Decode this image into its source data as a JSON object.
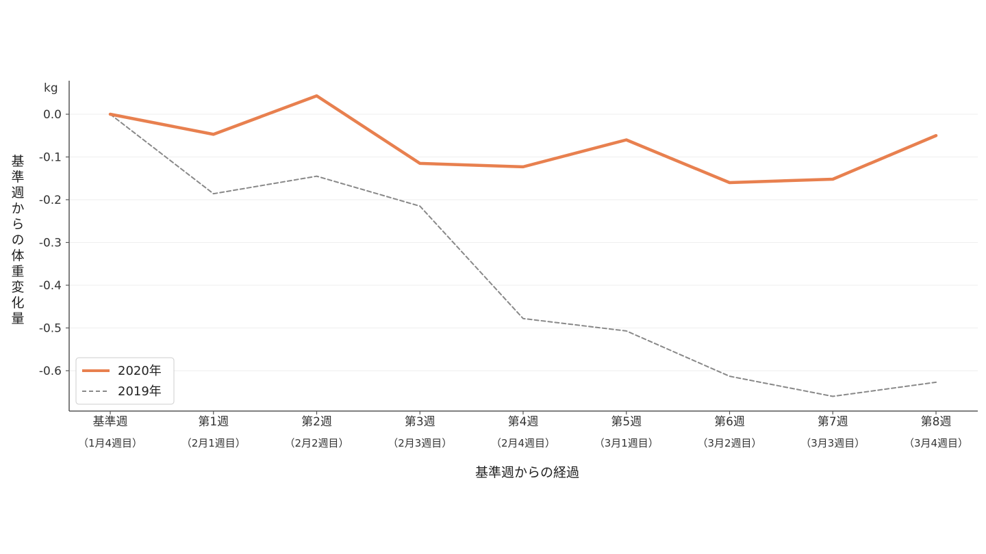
{
  "chart_data": {
    "type": "line",
    "title": "",
    "unit_label": "kg",
    "xlabel": "基準週からの経過",
    "ylabel": "基準週からの体重変化量",
    "categories": [
      {
        "label": "基準週",
        "sub": "（1月4週目）"
      },
      {
        "label": "第1週",
        "sub": "（2月1週目）"
      },
      {
        "label": "第2週",
        "sub": "（2月2週目）"
      },
      {
        "label": "第3週",
        "sub": "（2月3週目）"
      },
      {
        "label": "第4週",
        "sub": "（2月4週目）"
      },
      {
        "label": "第5週",
        "sub": "（3月1週目）"
      },
      {
        "label": "第6週",
        "sub": "（3月2週目）"
      },
      {
        "label": "第7週",
        "sub": "（3月3週目）"
      },
      {
        "label": "第8週",
        "sub": "（3月4週目）"
      }
    ],
    "yticks": [
      "0.0",
      "-0.1",
      "-0.2",
      "-0.3",
      "-0.4",
      "-0.5",
      "-0.6"
    ],
    "ylim": [
      -0.69,
      0.08
    ],
    "grid": true,
    "legend_position": "bottom-left",
    "series": [
      {
        "name": "2020年",
        "color": "#e8804f",
        "style": "solid",
        "values": [
          0.0,
          -0.047,
          0.043,
          -0.115,
          -0.123,
          -0.06,
          -0.16,
          -0.152,
          -0.05
        ]
      },
      {
        "name": "2019年",
        "color": "#888888",
        "style": "dashed",
        "values": [
          0.0,
          -0.186,
          -0.145,
          -0.215,
          -0.478,
          -0.507,
          -0.613,
          -0.66,
          -0.627
        ]
      }
    ]
  }
}
